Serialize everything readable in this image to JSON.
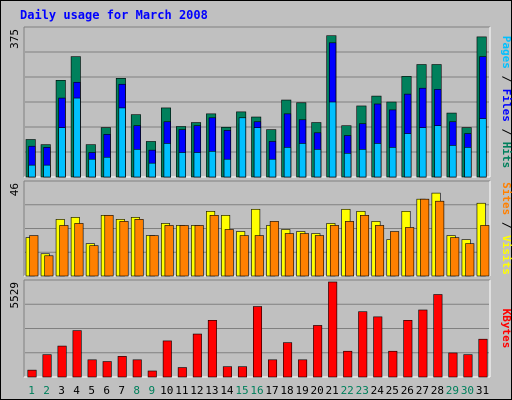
{
  "title": "Daily usage for March 2008",
  "chart_data": [
    {
      "type": "bar",
      "panel": "top",
      "ymax_label": "375",
      "ylim": [
        0,
        375
      ],
      "right_label": {
        "parts": [
          "Pages",
          "Files",
          "Hits"
        ],
        "separator": " / "
      },
      "categories": [
        "1",
        "2",
        "3",
        "4",
        "5",
        "6",
        "7",
        "8",
        "9",
        "10",
        "11",
        "12",
        "13",
        "14",
        "15",
        "16",
        "17",
        "18",
        "19",
        "20",
        "21",
        "22",
        "23",
        "24",
        "25",
        "26",
        "27",
        "28",
        "29",
        "30",
        "31"
      ],
      "series": [
        {
          "name": "Hits",
          "color": "#00805c",
          "values": [
            95,
            82,
            245,
            305,
            82,
            125,
            250,
            158,
            90,
            175,
            128,
            138,
            160,
            126,
            165,
            152,
            120,
            195,
            188,
            138,
            358,
            130,
            180,
            205,
            190,
            255,
            285,
            285,
            162,
            125,
            355
          ]
        },
        {
          "name": "Files",
          "color": "#0000ff",
          "values": [
            78,
            75,
            200,
            240,
            62,
            108,
            235,
            130,
            68,
            140,
            120,
            130,
            150,
            118,
            135,
            140,
            90,
            160,
            145,
            112,
            340,
            105,
            135,
            185,
            170,
            210,
            225,
            222,
            140,
            110,
            305
          ]
        },
        {
          "name": "Pages",
          "color": "#00c0ff",
          "values": [
            30,
            30,
            125,
            200,
            45,
            50,
            175,
            70,
            35,
            85,
            62,
            62,
            65,
            45,
            150,
            125,
            45,
            75,
            85,
            70,
            190,
            60,
            70,
            85,
            75,
            110,
            125,
            130,
            80,
            75,
            148
          ]
        }
      ]
    },
    {
      "type": "bar",
      "panel": "middle",
      "ymax_label": "46",
      "ylim": [
        0,
        46
      ],
      "right_label": {
        "parts": [
          "Sites",
          "Visits"
        ],
        "separator": " / "
      },
      "categories": [
        "1",
        "2",
        "3",
        "4",
        "5",
        "6",
        "7",
        "8",
        "9",
        "10",
        "11",
        "12",
        "13",
        "14",
        "15",
        "16",
        "17",
        "18",
        "19",
        "20",
        "21",
        "22",
        "23",
        "24",
        "25",
        "26",
        "27",
        "28",
        "29",
        "30",
        "31"
      ],
      "series": [
        {
          "name": "Visits",
          "color": "#ffff00",
          "values": [
            19,
            11,
            28,
            29,
            16,
            30,
            28,
            29,
            20,
            26,
            25,
            25,
            32,
            30,
            22,
            33,
            25,
            23,
            22,
            21,
            26,
            33,
            32,
            27,
            18,
            32,
            38,
            41,
            20,
            18,
            36
          ]
        },
        {
          "name": "Sites",
          "color": "#ff8000",
          "values": [
            20,
            10,
            25,
            26,
            15,
            30,
            27,
            28,
            20,
            25,
            25,
            25,
            30,
            23,
            20,
            20,
            27,
            21,
            21,
            20,
            25,
            27,
            30,
            25,
            22,
            24,
            38,
            37,
            19,
            16,
            25
          ]
        }
      ]
    },
    {
      "type": "bar",
      "panel": "bottom",
      "ymax_label": "5529",
      "ylim": [
        0,
        5529
      ],
      "right_label": {
        "parts": [
          "KBytes"
        ],
        "separator": ""
      },
      "categories": [
        "1",
        "2",
        "3",
        "4",
        "5",
        "6",
        "7",
        "8",
        "9",
        "10",
        "11",
        "12",
        "13",
        "14",
        "15",
        "16",
        "17",
        "18",
        "19",
        "20",
        "21",
        "22",
        "23",
        "24",
        "25",
        "26",
        "27",
        "28",
        "29",
        "30",
        "31"
      ],
      "series": [
        {
          "name": "KBytes",
          "color": "#ff0000",
          "values": [
            400,
            1300,
            1800,
            2700,
            1000,
            900,
            1200,
            1000,
            350,
            2100,
            550,
            2500,
            3300,
            600,
            600,
            4100,
            1000,
            2000,
            1000,
            3000,
            5529,
            1500,
            3800,
            3500,
            1500,
            3300,
            3900,
            4800,
            1400,
            1300,
            2200
          ]
        }
      ]
    }
  ],
  "x_axis": {
    "labels": [
      "1",
      "2",
      "3",
      "4",
      "5",
      "6",
      "7",
      "8",
      "9",
      "10",
      "11",
      "12",
      "13",
      "14",
      "15",
      "16",
      "17",
      "18",
      "19",
      "20",
      "21",
      "22",
      "23",
      "24",
      "25",
      "26",
      "27",
      "28",
      "29",
      "30",
      "31"
    ],
    "weekend": [
      1,
      2,
      8,
      9,
      15,
      16,
      22,
      23,
      29,
      30
    ],
    "weekday_color": "#000000",
    "weekend_color": "#00805c"
  },
  "colors": {
    "title": "#0000ff",
    "background": "#c0c0c0",
    "bar_border": "#000000"
  }
}
